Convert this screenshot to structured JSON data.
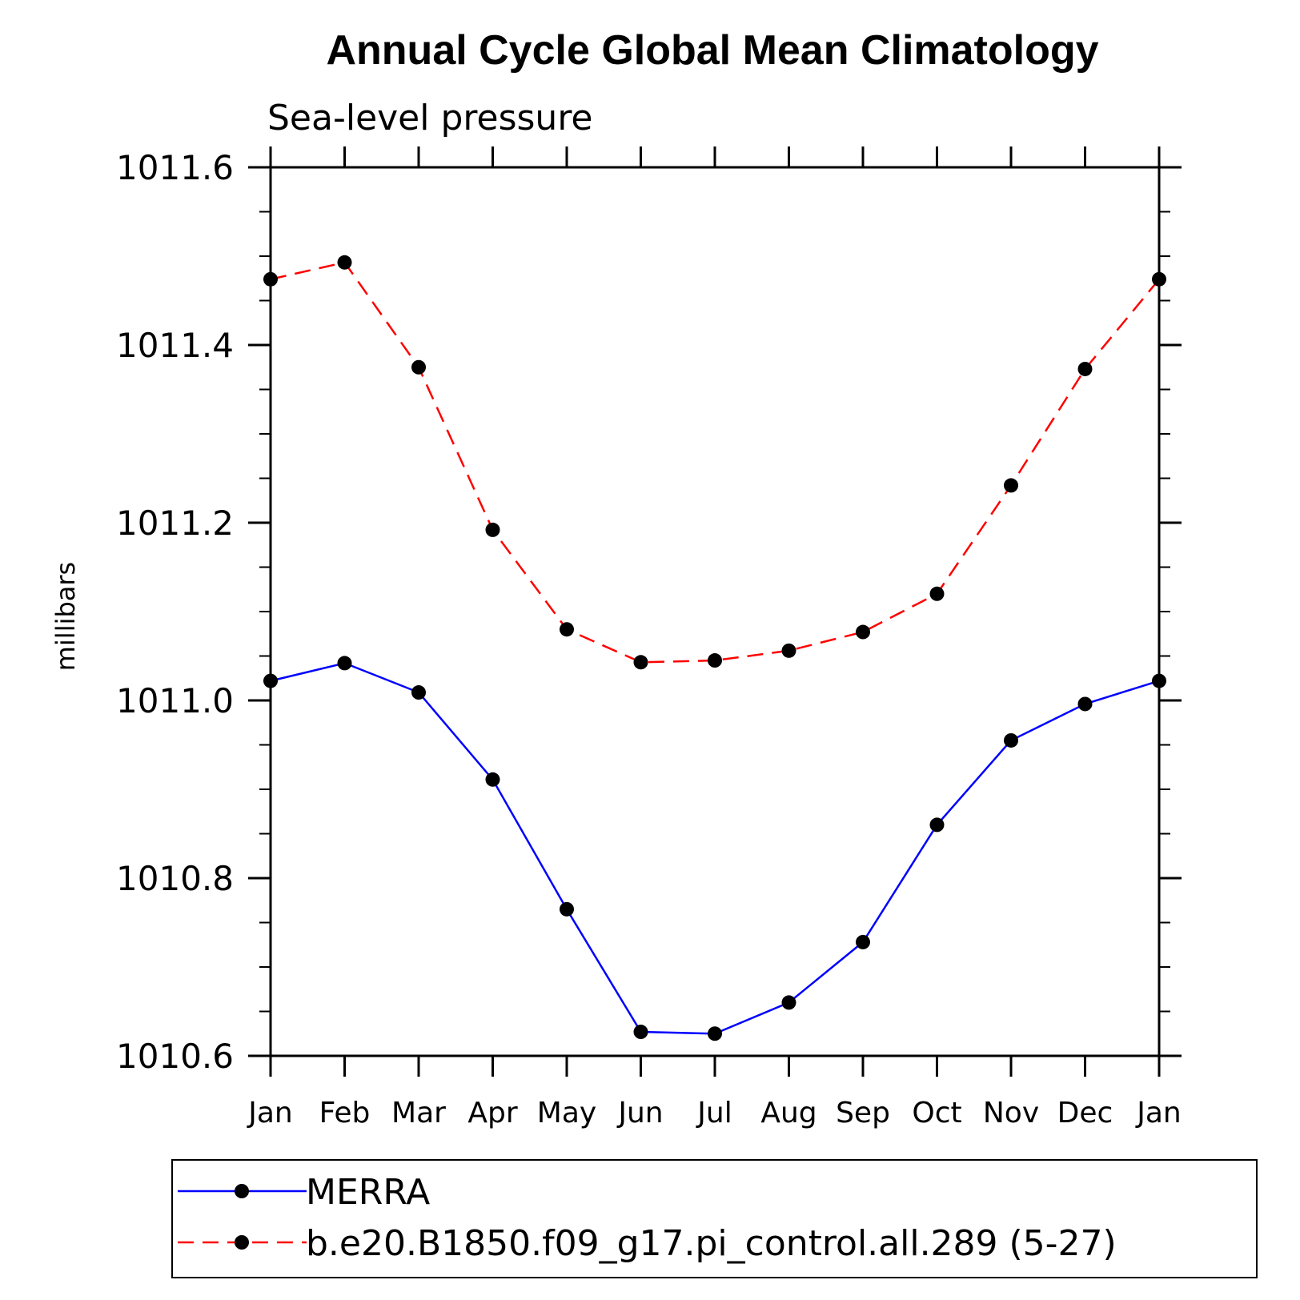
{
  "chart_data": {
    "type": "line",
    "title": "Annual Cycle Global Mean Climatology",
    "subtitle": "Sea-level pressure",
    "ylabel": "millibars",
    "xlabel": "",
    "categories": [
      "Jan",
      "Feb",
      "Mar",
      "Apr",
      "May",
      "Jun",
      "Jul",
      "Aug",
      "Sep",
      "Oct",
      "Nov",
      "Dec",
      "Jan"
    ],
    "ylim": [
      1010.6,
      1011.6
    ],
    "yticks": [
      "1010.6",
      "1010.8",
      "1011.0",
      "1011.2",
      "1011.4",
      "1011.6"
    ],
    "grid": false,
    "legend_position": "bottom",
    "series": [
      {
        "name": "MERRA",
        "color": "#0000ff",
        "line_style": "solid",
        "marker": "filled-circle",
        "values": [
          1011.022,
          1011.042,
          1011.009,
          1010.911,
          1010.765,
          1010.627,
          1010.625,
          1010.66,
          1010.728,
          1010.86,
          1010.955,
          1010.996,
          1011.022
        ]
      },
      {
        "name": "b.e20.B1850.f09_g17.pi_control.all.289 (5-27)",
        "color": "#ff0000",
        "line_style": "dashed",
        "marker": "filled-circle",
        "values": [
          1011.474,
          1011.493,
          1011.375,
          1011.192,
          1011.08,
          1011.043,
          1011.045,
          1011.056,
          1011.077,
          1011.12,
          1011.242,
          1011.373,
          1011.474
        ]
      }
    ]
  }
}
